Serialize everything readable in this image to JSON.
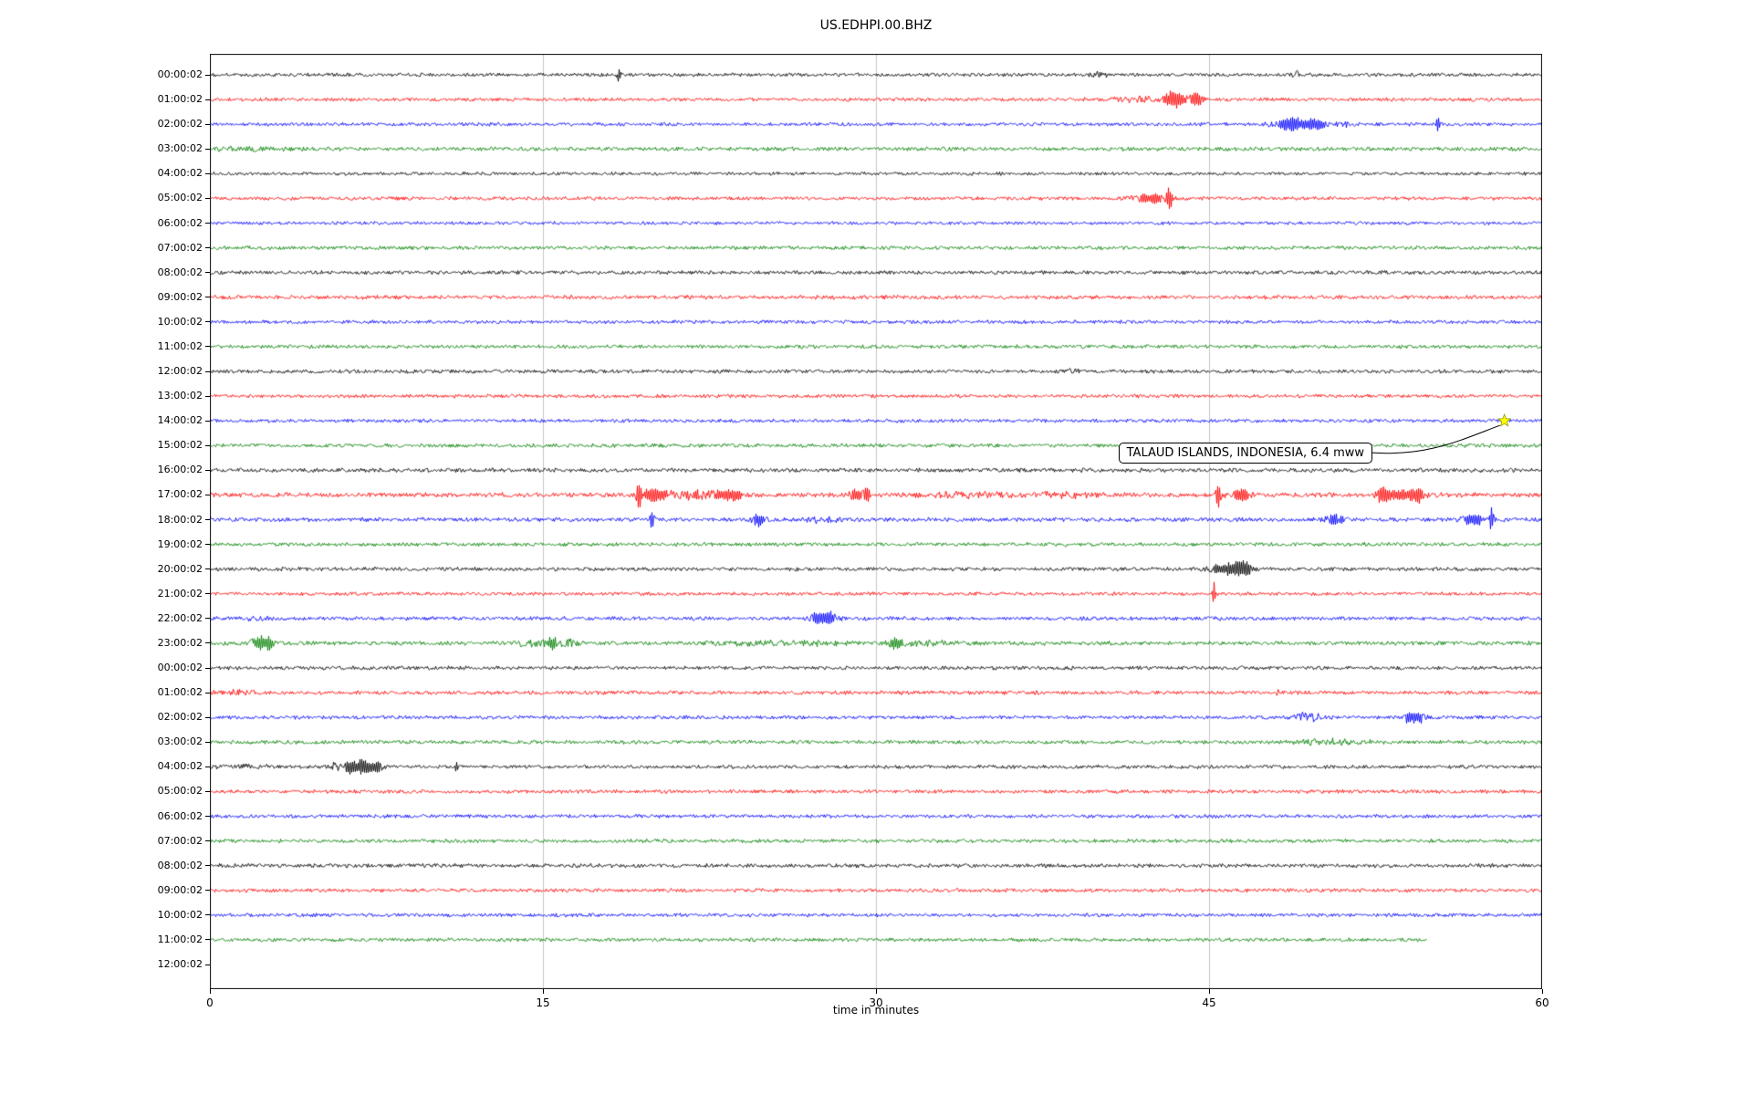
{
  "title": "US.EDHPI.00.BHZ",
  "axes": {
    "xlabel": "time in minutes",
    "x_ticks": [
      "0",
      "15",
      "30",
      "45",
      "60"
    ],
    "x_range": [
      0,
      60
    ]
  },
  "annotation": {
    "text": "TALAUD ISLANDS, INDONESIA, 6.4 mww",
    "marker": "star-icon",
    "marker_color": "#ffff00",
    "row_index": 14,
    "row_label": "14:00:02",
    "minute": 58.3
  },
  "chart_data": {
    "type": "line",
    "x_range": [
      0,
      60
    ],
    "x_ticks": [
      0,
      15,
      30,
      45,
      60
    ],
    "grid": "vertical",
    "colors_cycle": [
      "#000000",
      "#ff0000",
      "#0000ff",
      "#008000"
    ],
    "rows": [
      {
        "label": "00:00:02",
        "color": "#000000",
        "amp": 2.2,
        "events": [
          [
            18.4,
            0.08,
            8
          ],
          [
            40.0,
            0.4,
            3
          ],
          [
            48.9,
            0.15,
            4
          ]
        ]
      },
      {
        "label": "01:00:02",
        "color": "#ff0000",
        "amp": 2.2,
        "events": [
          [
            41.5,
            1.2,
            2.5
          ],
          [
            43.4,
            0.5,
            9
          ],
          [
            44.4,
            0.3,
            7
          ]
        ]
      },
      {
        "label": "02:00:02",
        "color": "#0000ff",
        "amp": 2.2,
        "events": [
          [
            48.7,
            0.8,
            7
          ],
          [
            49.9,
            0.4,
            5
          ],
          [
            51.0,
            0.3,
            3
          ],
          [
            55.3,
            0.08,
            9
          ]
        ]
      },
      {
        "label": "03:00:02",
        "color": "#008000",
        "amp": 2.5,
        "events": [
          [
            1.5,
            1.8,
            1.5
          ]
        ]
      },
      {
        "label": "04:00:02",
        "color": "#000000",
        "amp": 2.0,
        "events": []
      },
      {
        "label": "05:00:02",
        "color": "#ff0000",
        "amp": 2.2,
        "events": [
          [
            42.4,
            0.9,
            5
          ],
          [
            43.2,
            0.12,
            13
          ]
        ]
      },
      {
        "label": "06:00:02",
        "color": "#0000ff",
        "amp": 2.0,
        "events": []
      },
      {
        "label": "07:00:02",
        "color": "#008000",
        "amp": 2.3,
        "events": []
      },
      {
        "label": "08:00:02",
        "color": "#000000",
        "amp": 2.4,
        "events": []
      },
      {
        "label": "09:00:02",
        "color": "#ff0000",
        "amp": 2.5,
        "events": []
      },
      {
        "label": "10:00:02",
        "color": "#0000ff",
        "amp": 2.2,
        "events": []
      },
      {
        "label": "11:00:02",
        "color": "#008000",
        "amp": 2.3,
        "events": []
      },
      {
        "label": "12:00:02",
        "color": "#000000",
        "amp": 2.3,
        "events": [
          [
            38.5,
            0.6,
            2
          ]
        ]
      },
      {
        "label": "13:00:02",
        "color": "#ff0000",
        "amp": 2.2,
        "events": []
      },
      {
        "label": "14:00:02",
        "color": "#0000ff",
        "amp": 2.2,
        "events": []
      },
      {
        "label": "15:00:02",
        "color": "#008000",
        "amp": 2.4,
        "events": []
      },
      {
        "label": "16:00:02",
        "color": "#000000",
        "amp": 2.6,
        "events": []
      },
      {
        "label": "17:00:02",
        "color": "#ff0000",
        "amp": 2.9,
        "events": [
          [
            19.3,
            0.1,
            14
          ],
          [
            20.0,
            0.5,
            6
          ],
          [
            21.8,
            1.5,
            4
          ],
          [
            23.6,
            0.8,
            4
          ],
          [
            29.1,
            0.5,
            5
          ],
          [
            29.6,
            0.12,
            7
          ],
          [
            34.5,
            2.0,
            2.5
          ],
          [
            38.2,
            1.2,
            3
          ],
          [
            45.4,
            0.1,
            14
          ],
          [
            46.4,
            0.5,
            6
          ],
          [
            52.8,
            0.2,
            9
          ],
          [
            53.6,
            0.8,
            5
          ],
          [
            54.4,
            0.25,
            7
          ]
        ]
      },
      {
        "label": "18:00:02",
        "color": "#0000ff",
        "amp": 2.6,
        "events": [
          [
            19.9,
            0.1,
            10
          ],
          [
            24.7,
            0.35,
            6
          ],
          [
            27.5,
            1.0,
            2.5
          ],
          [
            50.6,
            0.4,
            5
          ],
          [
            56.9,
            0.5,
            6
          ],
          [
            57.7,
            0.1,
            11
          ]
        ]
      },
      {
        "label": "19:00:02",
        "color": "#008000",
        "amp": 2.4,
        "events": []
      },
      {
        "label": "20:00:02",
        "color": "#000000",
        "amp": 2.4,
        "events": [
          [
            45.3,
            0.7,
            4
          ],
          [
            46.2,
            0.4,
            8
          ],
          [
            46.7,
            0.25,
            6
          ]
        ]
      },
      {
        "label": "21:00:02",
        "color": "#ff0000",
        "amp": 2.2,
        "events": [
          [
            45.2,
            0.06,
            16
          ]
        ]
      },
      {
        "label": "22:00:02",
        "color": "#0000ff",
        "amp": 2.4,
        "events": [
          [
            2.0,
            0.5,
            2.5
          ],
          [
            27.4,
            0.45,
            6
          ],
          [
            28.0,
            0.25,
            5
          ]
        ]
      },
      {
        "label": "23:00:02",
        "color": "#008000",
        "amp": 2.6,
        "events": [
          [
            2.2,
            0.35,
            7
          ],
          [
            2.7,
            0.2,
            5
          ],
          [
            14.6,
            0.9,
            3.5
          ],
          [
            15.4,
            0.15,
            6
          ],
          [
            16.1,
            0.5,
            3.5
          ],
          [
            25.5,
            3.0,
            2
          ],
          [
            30.8,
            0.4,
            5
          ],
          [
            32.2,
            1.0,
            2.5
          ]
        ]
      },
      {
        "label": "00:00:02",
        "color": "#000000",
        "amp": 2.3,
        "events": []
      },
      {
        "label": "01:00:02",
        "color": "#ff0000",
        "amp": 2.4,
        "events": [
          [
            1.0,
            1.0,
            2
          ],
          [
            48.1,
            0.08,
            4
          ]
        ]
      },
      {
        "label": "02:00:02",
        "color": "#0000ff",
        "amp": 2.3,
        "events": [
          [
            49.4,
            0.7,
            4
          ],
          [
            54.0,
            0.3,
            6
          ],
          [
            54.5,
            0.2,
            5
          ]
        ]
      },
      {
        "label": "03:00:02",
        "color": "#008000",
        "amp": 2.4,
        "events": [
          [
            50.5,
            1.5,
            2.5
          ]
        ]
      },
      {
        "label": "04:00:02",
        "color": "#000000",
        "amp": 2.3,
        "events": [
          [
            1.5,
            1.2,
            1.5
          ],
          [
            5.6,
            0.25,
            4
          ],
          [
            6.3,
            0.3,
            7
          ],
          [
            6.9,
            0.35,
            8
          ],
          [
            7.5,
            0.25,
            6
          ],
          [
            11.1,
            0.12,
            6
          ]
        ]
      },
      {
        "label": "05:00:02",
        "color": "#ff0000",
        "amp": 2.3,
        "events": []
      },
      {
        "label": "06:00:02",
        "color": "#0000ff",
        "amp": 2.2,
        "events": []
      },
      {
        "label": "07:00:02",
        "color": "#008000",
        "amp": 2.3,
        "events": []
      },
      {
        "label": "08:00:02",
        "color": "#000000",
        "amp": 2.5,
        "events": []
      },
      {
        "label": "09:00:02",
        "color": "#ff0000",
        "amp": 2.3,
        "events": []
      },
      {
        "label": "10:00:02",
        "color": "#0000ff",
        "amp": 2.2,
        "events": []
      },
      {
        "label": "11:00:02",
        "color": "#008000",
        "amp": 2.3,
        "end": 54.8,
        "events": []
      },
      {
        "label": "12:00:02",
        "color": "#000000",
        "amp": 0,
        "empty": true,
        "events": []
      }
    ]
  }
}
